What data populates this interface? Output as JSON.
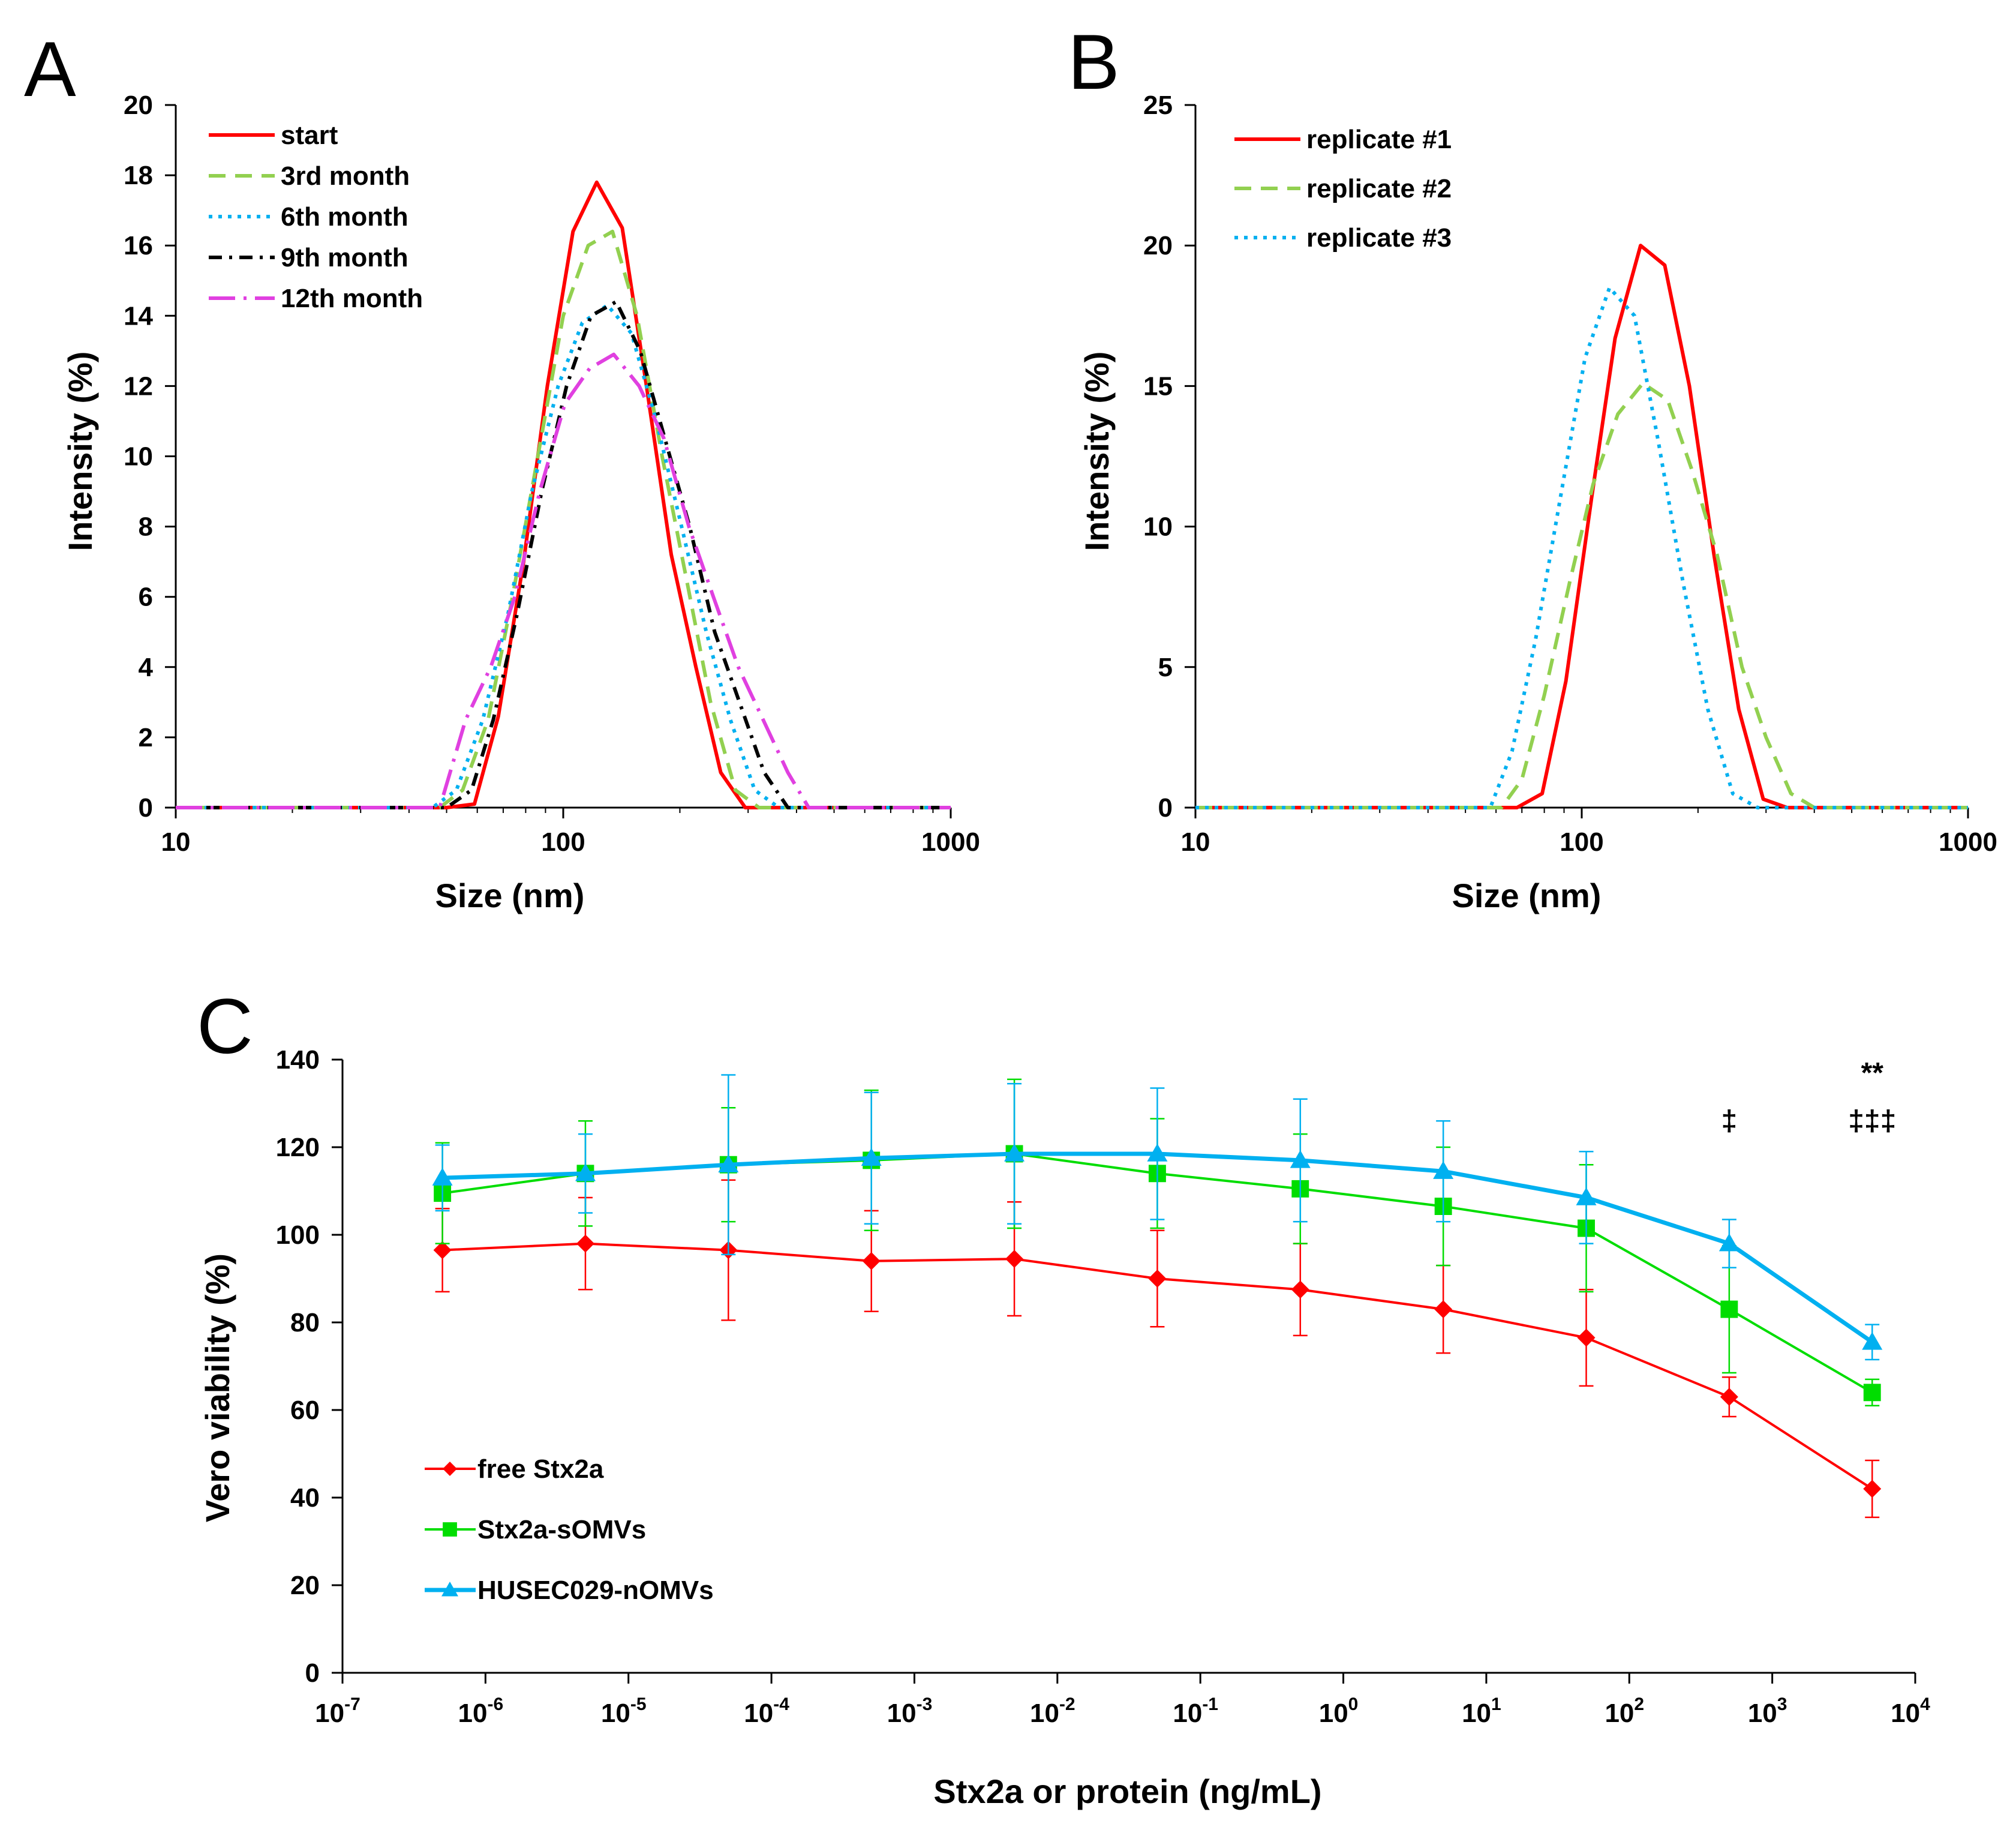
{
  "chart_data": [
    {
      "type": "line",
      "panel_label": "A",
      "xlabel": "Size (nm)",
      "ylabel": "Intensity (%)",
      "xscale": "log",
      "xlim": [
        10,
        1000
      ],
      "ylim": [
        0,
        20
      ],
      "x_ticks": [
        10,
        100,
        1000
      ],
      "x_tick_labels": [
        "10",
        "100",
        "1000"
      ],
      "y_ticks": [
        0,
        2,
        4,
        6,
        8,
        10,
        12,
        14,
        16,
        18,
        20
      ],
      "y_tick_labels": [
        "0",
        "2",
        "4",
        "6",
        "8",
        "10",
        "12",
        "14",
        "16",
        "18",
        "20"
      ],
      "legend_position": "top-left",
      "series": [
        {
          "name": "start",
          "color": "#ff0000",
          "dash": "solid",
          "x": [
            10,
            50,
            59,
            68,
            79,
            91,
            106,
            122,
            142,
            164,
            190,
            220,
            255,
            295,
            340,
            1000
          ],
          "y": [
            0,
            0,
            0.1,
            2.6,
            7,
            12,
            16.4,
            17.8,
            16.5,
            12,
            7.2,
            4,
            1,
            0,
            0,
            0
          ]
        },
        {
          "name": "3rd month",
          "color": "#92d050",
          "dash": "dashed",
          "x": [
            10,
            48,
            55,
            64,
            74,
            86,
            100,
            116,
            134,
            155,
            180,
            208,
            240,
            278,
            320,
            1000
          ],
          "y": [
            0,
            0,
            0.5,
            2.5,
            6,
            10,
            14,
            16,
            16.4,
            14,
            10,
            6.5,
            3,
            0.5,
            0,
            0
          ]
        },
        {
          "name": "6th month",
          "color": "#00b0f0",
          "dash": "dotted",
          "x": [
            10,
            46,
            53,
            62,
            72,
            83,
            97,
            112,
            130,
            150,
            174,
            202,
            234,
            270,
            312,
            360,
            1000
          ],
          "y": [
            0,
            0,
            0.5,
            2.5,
            5.5,
            9,
            12,
            13.8,
            14.3,
            13.5,
            11,
            8,
            5,
            2.5,
            0.5,
            0,
            0
          ]
        },
        {
          "name": "9th month",
          "color": "#000000",
          "dash": "dashdot",
          "x": [
            10,
            50,
            58,
            66,
            76,
            88,
            102,
            118,
            137,
            158,
            183,
            212,
            246,
            285,
            330,
            380,
            1000
          ],
          "y": [
            0,
            0,
            0.5,
            2.5,
            5.5,
            9,
            12,
            14,
            14.4,
            13,
            10.5,
            8,
            5,
            3,
            1,
            0,
            0
          ]
        },
        {
          "name": "12th month",
          "color": "#e040e0",
          "dash": "longdash",
          "x": [
            10,
            48,
            56,
            65,
            75,
            87,
            101,
            117,
            135,
            157,
            182,
            211,
            244,
            283,
            328,
            380,
            430,
            1000
          ],
          "y": [
            0,
            0,
            2.5,
            4,
            6,
            9,
            11.5,
            12.5,
            12.9,
            12,
            10.5,
            8,
            6,
            4,
            2.5,
            1,
            0,
            0
          ]
        }
      ]
    },
    {
      "type": "line",
      "panel_label": "B",
      "xlabel": "Size (nm)",
      "ylabel": "Intensity (%)",
      "xscale": "log",
      "xlim": [
        10,
        1000
      ],
      "ylim": [
        0,
        25
      ],
      "x_ticks": [
        10,
        100,
        1000
      ],
      "x_tick_labels": [
        "10",
        "100",
        "1000"
      ],
      "y_ticks": [
        0,
        5,
        10,
        15,
        20,
        25
      ],
      "y_tick_labels": [
        "0",
        "5",
        "10",
        "15",
        "20",
        "25"
      ],
      "legend_position": "top-left",
      "series": [
        {
          "name": "replicate #1",
          "color": "#ff0000",
          "dash": "solid",
          "x": [
            10,
            68,
            79,
            91,
            106,
            122,
            142,
            164,
            190,
            220,
            255,
            295,
            340,
            1000
          ],
          "y": [
            0,
            0,
            0.5,
            4.5,
            11,
            16.7,
            20,
            19.3,
            15,
            9,
            3.5,
            0.3,
            0,
            0
          ]
        },
        {
          "name": "replicate #2",
          "color": "#92d050",
          "dash": "dashed",
          "x": [
            10,
            62,
            70,
            80,
            93,
            107,
            124,
            144,
            167,
            193,
            224,
            260,
            300,
            348,
            400,
            1000
          ],
          "y": [
            0,
            0,
            1,
            4,
            8,
            11.5,
            14,
            15.1,
            14.5,
            12,
            9,
            5,
            2.5,
            0.5,
            0,
            0
          ]
        },
        {
          "name": "replicate #3",
          "color": "#00b0f0",
          "dash": "dotted",
          "x": [
            10,
            58,
            66,
            76,
            88,
            102,
            118,
            137,
            158,
            183,
            212,
            246,
            285,
            1000
          ],
          "y": [
            0,
            0,
            2,
            6,
            11,
            16,
            18.5,
            17.5,
            13,
            8,
            3.5,
            0.5,
            0,
            0
          ]
        }
      ]
    },
    {
      "type": "line",
      "panel_label": "C",
      "xlabel": "Stx2a or protein (ng/mL)",
      "ylabel": "Vero viability (%)",
      "xscale": "log",
      "xlim_exponents": [
        -7,
        4
      ],
      "ylim": [
        0,
        140
      ],
      "x_tick_exponents": [
        -7,
        -6,
        -5,
        -4,
        -3,
        -2,
        -1,
        0,
        1,
        2,
        3,
        4
      ],
      "x_tick_base": "10",
      "x_tick_exponent_labels": [
        "-7",
        "-6",
        "-5",
        "-4",
        "-3",
        "-2",
        "-1",
        "0",
        "1",
        "2",
        "3",
        "4"
      ],
      "y_ticks": [
        0,
        20,
        40,
        60,
        80,
        100,
        120,
        140
      ],
      "y_tick_labels": [
        "0",
        "20",
        "40",
        "60",
        "80",
        "100",
        "120",
        "140"
      ],
      "legend_position": "bottom-left",
      "x": [
        5e-07,
        5e-06,
        5e-05,
        0.0005,
        0.005,
        0.05,
        0.5,
        5,
        50,
        500,
        5000
      ],
      "series": [
        {
          "name": "free Stx2a",
          "color": "#ff0000",
          "marker": "diamond",
          "values": [
            96.5,
            98,
            96.5,
            94,
            94.5,
            90,
            87.5,
            83,
            76.5,
            63,
            42
          ],
          "errors": [
            9.5,
            10.5,
            16,
            11.5,
            13,
            11,
            10.5,
            10,
            11,
            4.5,
            6.5
          ]
        },
        {
          "name": "Stx2a-sOMVs",
          "color": "#00dd00",
          "marker": "square",
          "values": [
            109.5,
            114,
            116,
            117,
            118.5,
            114,
            110.5,
            106.5,
            101.5,
            83,
            64
          ],
          "errors": [
            11.5,
            12,
            13,
            16,
            17,
            12.5,
            12.5,
            13.5,
            14.5,
            14.5,
            3
          ]
        },
        {
          "name": "HUSEC029-nOMVs",
          "color": "#00b0f0",
          "marker": "triangle",
          "values": [
            113,
            114,
            116,
            117.5,
            118.5,
            118.5,
            117,
            114.5,
            108.5,
            98,
            75.5
          ],
          "errors": [
            7.5,
            9,
            20.5,
            15,
            16,
            15,
            14,
            11.5,
            10.5,
            5.5,
            4
          ]
        }
      ],
      "annotations": [
        {
          "text": "‡",
          "x": 500,
          "y": 126
        },
        {
          "text": "**",
          "x": 5000,
          "y": 137
        },
        {
          "text": "‡‡‡",
          "x": 5000,
          "y": 126
        }
      ]
    }
  ]
}
